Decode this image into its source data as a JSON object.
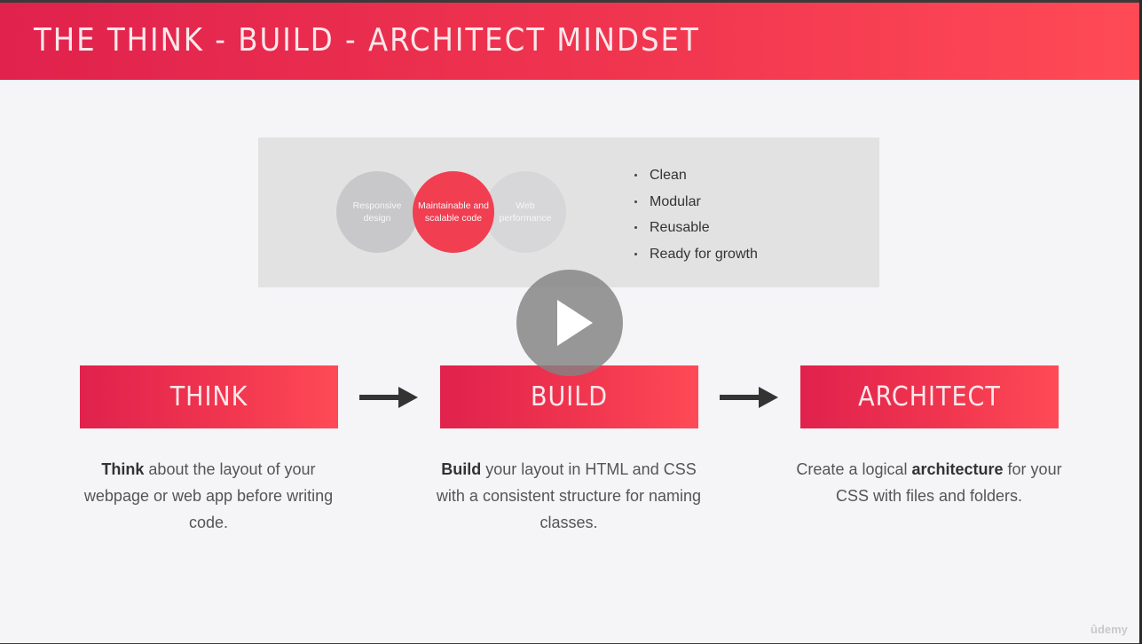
{
  "header": {
    "title": "THE THINK - BUILD - ARCHITECT MINDSET"
  },
  "goals": {
    "circles": [
      {
        "label": "Responsive design"
      },
      {
        "label": "Maintainable and scalable code"
      },
      {
        "label": "Web performance"
      }
    ],
    "bullets": [
      "Clean",
      "Modular",
      "Reusable",
      "Ready for growth"
    ]
  },
  "stages": [
    {
      "label": "THINK",
      "desc_bold": "Think",
      "desc_rest": " about the layout of your webpage or web app before writing code."
    },
    {
      "label": "BUILD",
      "desc_bold": "Build",
      "desc_rest": " your layout in HTML and CSS with a consistent structure for naming classes."
    },
    {
      "label": "ARCHITECT",
      "desc_pre": "Create a logical ",
      "desc_bold": "architecture",
      "desc_rest": " for your CSS with files and folders."
    }
  ],
  "watermark": "ûdemy",
  "icons": {
    "play": "play-icon",
    "arrow": "arrow-right-icon"
  },
  "colors": {
    "accent": "#f0354f",
    "accent_dark": "#e0224d",
    "circle_gray": "#c8c7c9"
  }
}
